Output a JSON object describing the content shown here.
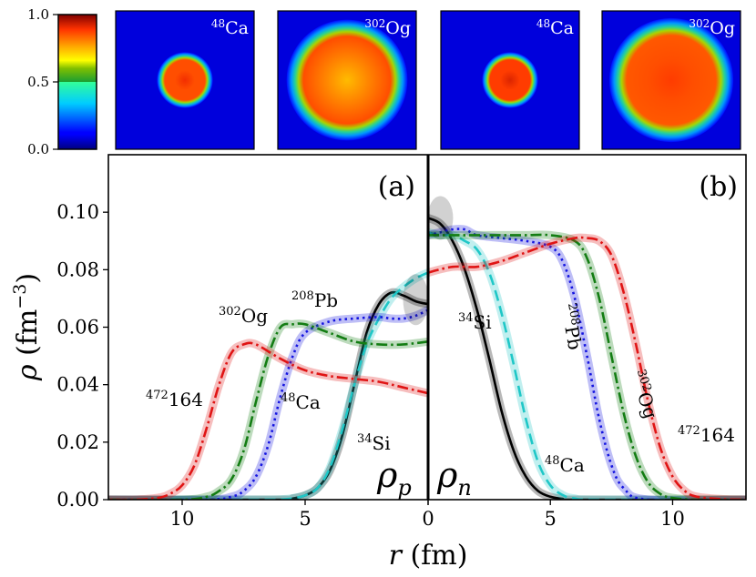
{
  "colorbar": {
    "ticks": [
      "1.0",
      "0.5",
      "0.0"
    ],
    "tick_values": [
      1.0,
      0.5,
      0.0
    ]
  },
  "insets": [
    {
      "label_mass": "48",
      "label_element": "Ca",
      "type": "proton",
      "relative_radius": 0.36,
      "center_value": 0.9,
      "interior_value": 0.86,
      "ring_value": 0.86
    },
    {
      "label_mass": "302",
      "label_element": "Og",
      "type": "proton",
      "relative_radius": 0.78,
      "center_value": 0.74,
      "interior_value": 0.8,
      "ring_value": 0.86
    },
    {
      "label_mass": "48",
      "label_element": "Ca",
      "type": "neutron",
      "relative_radius": 0.36,
      "center_value": 0.92,
      "interior_value": 0.88,
      "ring_value": 0.88
    },
    {
      "label_mass": "302",
      "label_element": "Og",
      "type": "neutron",
      "relative_radius": 0.8,
      "center_value": 0.88,
      "interior_value": 0.86,
      "ring_value": 0.85
    }
  ],
  "chart_data": [
    {
      "type": "line",
      "panel": "(a)",
      "density_label": "ρ",
      "density_subscript": "p",
      "x_direction": "reversed",
      "xlim": [
        13,
        0
      ],
      "ylim": [
        0,
        0.12
      ],
      "xlabel_var": "r",
      "xlabel_unit": "(fm)",
      "ylabel_var": "ρ",
      "ylabel_unit": "(fm",
      "ylabel_exp": "−3",
      "ylabel_close": ")",
      "xticks": [
        10,
        5,
        0
      ],
      "xtick_labels": [
        "10",
        "5",
        "0"
      ],
      "yticks": [
        0.0,
        0.02,
        0.04,
        0.06,
        0.08,
        0.1
      ],
      "ytick_labels": [
        "0.00",
        "0.02",
        "0.04",
        "0.06",
        "0.08",
        "0.10"
      ],
      "series": [
        {
          "name": "34Si",
          "mass": "34",
          "element": "Si",
          "color": "#000000",
          "style": "solid",
          "x": [
            0,
            0.5,
            1,
            1.5,
            2,
            2.5,
            3,
            3.5,
            4,
            4.5,
            5,
            5.5,
            6
          ],
          "y": [
            0.068,
            0.069,
            0.071,
            0.072,
            0.068,
            0.058,
            0.04,
            0.022,
            0.01,
            0.004,
            0.0015,
            0.0004,
            0
          ]
        },
        {
          "name": "48Ca",
          "mass": "48",
          "element": "Ca",
          "color": "#1fc7c7",
          "style": "dashed",
          "x": [
            0,
            0.5,
            1,
            1.5,
            2,
            2.5,
            3,
            3.5,
            4,
            4.5,
            5,
            5.5,
            6,
            7
          ],
          "y": [
            0.079,
            0.077,
            0.074,
            0.07,
            0.063,
            0.054,
            0.04,
            0.024,
            0.011,
            0.004,
            0.0015,
            0.0005,
            0.0001,
            0
          ]
        },
        {
          "name": "208Pb",
          "mass": "208",
          "element": "Pb",
          "color": "#1414e0",
          "style": "dotted",
          "x": [
            0,
            0.5,
            1,
            1.5,
            2,
            3,
            4,
            5,
            5.5,
            6,
            6.5,
            7,
            7.5,
            8,
            9
          ],
          "y": [
            0.066,
            0.064,
            0.063,
            0.063,
            0.0635,
            0.063,
            0.062,
            0.058,
            0.05,
            0.036,
            0.019,
            0.008,
            0.003,
            0.001,
            0
          ]
        },
        {
          "name": "302Og",
          "mass": "302",
          "element": "Og",
          "color": "#137d13",
          "style": "dashdot",
          "x": [
            0,
            1,
            2,
            3,
            4,
            5,
            5.5,
            6,
            6.5,
            7,
            7.5,
            8,
            8.5,
            9,
            10
          ],
          "y": [
            0.055,
            0.054,
            0.054,
            0.055,
            0.058,
            0.061,
            0.061,
            0.06,
            0.05,
            0.034,
            0.017,
            0.007,
            0.003,
            0.001,
            0
          ]
        },
        {
          "name": "472164",
          "mass": "472",
          "element": "164",
          "color": "#e01414",
          "style": "dashdot",
          "x": [
            0,
            1,
            2,
            3,
            4,
            5,
            6,
            7,
            7.5,
            8,
            8.5,
            9,
            9.5,
            10,
            10.5,
            11,
            12
          ],
          "y": [
            0.037,
            0.039,
            0.041,
            0.042,
            0.043,
            0.045,
            0.049,
            0.054,
            0.054,
            0.051,
            0.04,
            0.025,
            0.012,
            0.005,
            0.002,
            0.0006,
            0
          ]
        }
      ]
    },
    {
      "type": "line",
      "panel": "(b)",
      "density_label": "ρ",
      "density_subscript": "n",
      "x_direction": "normal",
      "xlim": [
        0,
        13
      ],
      "ylim": [
        0,
        0.12
      ],
      "xticks": [
        0,
        5,
        10
      ],
      "xtick_labels": [
        "0",
        "5",
        "10"
      ],
      "series": [
        {
          "name": "34Si",
          "mass": "34",
          "element": "Si",
          "color": "#000000",
          "style": "solid",
          "x": [
            0,
            0.5,
            1,
            1.5,
            2,
            2.5,
            3,
            3.5,
            4,
            4.5,
            5,
            5.5,
            6
          ],
          "y": [
            0.098,
            0.096,
            0.09,
            0.08,
            0.066,
            0.049,
            0.031,
            0.017,
            0.008,
            0.003,
            0.001,
            0.0003,
            0
          ]
        },
        {
          "name": "48Ca",
          "mass": "48",
          "element": "Ca",
          "color": "#1fc7c7",
          "style": "dashed",
          "x": [
            0,
            0.5,
            1,
            1.5,
            2,
            2.5,
            3,
            3.5,
            4,
            4.5,
            5,
            5.5,
            6,
            7
          ],
          "y": [
            0.093,
            0.092,
            0.092,
            0.09,
            0.087,
            0.079,
            0.065,
            0.047,
            0.028,
            0.013,
            0.005,
            0.0016,
            0.0004,
            0
          ]
        },
        {
          "name": "208Pb",
          "mass": "208",
          "element": "Pb",
          "color": "#1414e0",
          "style": "dotted",
          "x": [
            0,
            0.5,
            1,
            1.5,
            2,
            3,
            4,
            5,
            5.5,
            6,
            6.5,
            7,
            7.5,
            8,
            9
          ],
          "y": [
            0.092,
            0.093,
            0.094,
            0.094,
            0.092,
            0.091,
            0.09,
            0.088,
            0.083,
            0.07,
            0.05,
            0.028,
            0.012,
            0.004,
            0
          ]
        },
        {
          "name": "302Og",
          "mass": "302",
          "element": "Og",
          "color": "#137d13",
          "style": "dashdot",
          "x": [
            0,
            1,
            2,
            3,
            4,
            5,
            6,
            6.5,
            7,
            7.5,
            8,
            8.5,
            9,
            9.5,
            10,
            11
          ],
          "y": [
            0.092,
            0.092,
            0.092,
            0.092,
            0.092,
            0.092,
            0.09,
            0.084,
            0.07,
            0.05,
            0.03,
            0.015,
            0.006,
            0.002,
            0.0006,
            0
          ]
        },
        {
          "name": "472164",
          "mass": "472",
          "element": "164",
          "color": "#e01414",
          "style": "dashdot",
          "x": [
            0,
            1,
            2,
            3,
            4,
            5,
            6,
            6.5,
            7,
            7.5,
            8,
            8.5,
            9,
            9.5,
            10,
            10.5,
            11,
            12,
            13
          ],
          "y": [
            0.079,
            0.081,
            0.081,
            0.083,
            0.086,
            0.089,
            0.091,
            0.091,
            0.09,
            0.085,
            0.072,
            0.054,
            0.034,
            0.018,
            0.008,
            0.003,
            0.001,
            0.0002,
            0
          ]
        }
      ]
    }
  ]
}
